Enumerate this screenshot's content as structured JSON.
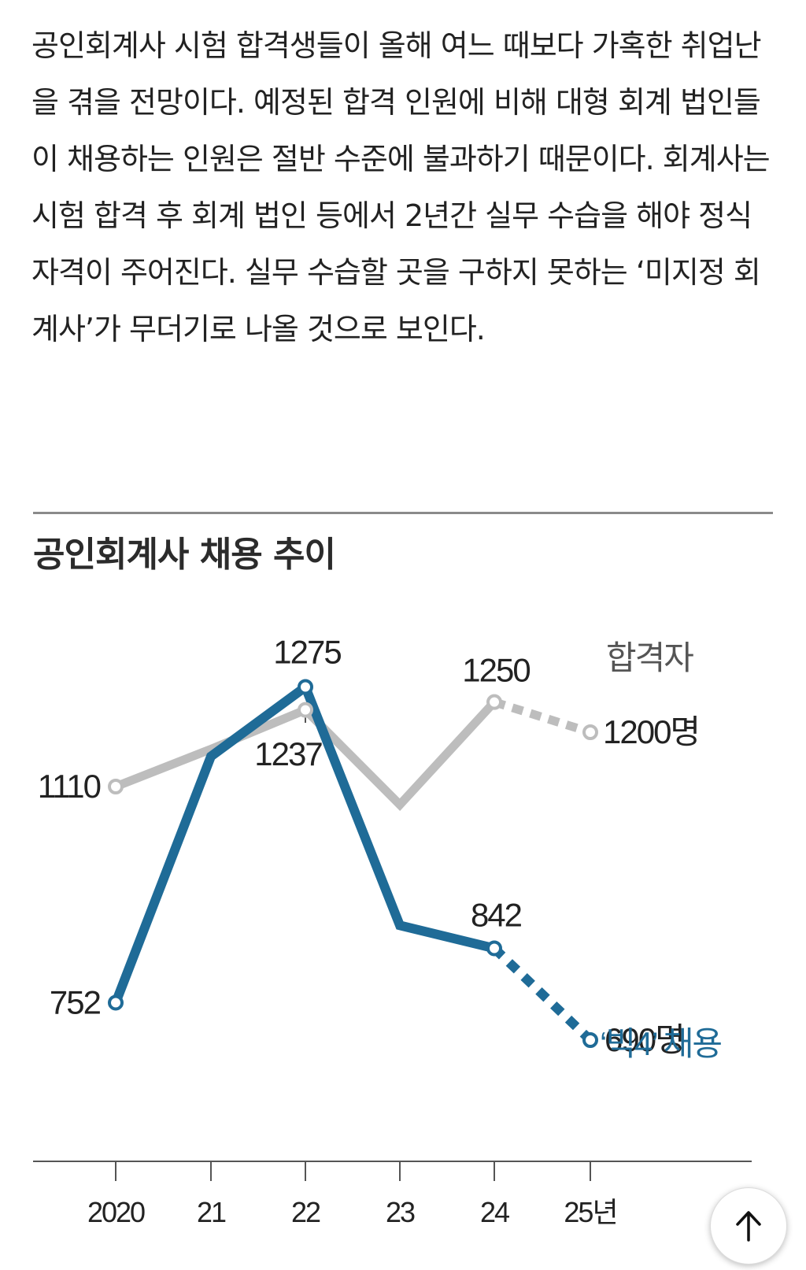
{
  "article": {
    "text": "공인회계사 시험 합격생들이 올해 여느 때보다 가혹한 취업난을 겪을 전망이다. 예정된 합격 인원에 비해 대형 회계 법인들이 채용하는 인원은 절반 수준에 불과하기 때문이다. 회계사는 시험 합격 후 회계 법인 등에서 2년간 실무 수습을 해야 정식 자격이 주어진다. 실무 수습할 곳을 구하지 못하는 ‘미지정 회계사’가 무더기로 나올 것으로 보인다."
  },
  "scroll_top_icon": "arrow-up-icon",
  "chart_data": {
    "type": "line",
    "title": "공인회계사 채용 추이",
    "categories": [
      "2020",
      "21",
      "22",
      "23",
      "24",
      "25년"
    ],
    "ylim": [
      600,
      1350
    ],
    "grid": false,
    "series": [
      {
        "name": "합격자",
        "color": "#bdbdbd",
        "values": [
          1110,
          1172,
          1237,
          1080,
          1250,
          1200
        ],
        "dashed_from_index": 4,
        "labels": [
          "1110",
          "",
          "1237",
          "",
          "1250",
          "1200명"
        ]
      },
      {
        "name": "‘빅4’ 채용",
        "color": "#1f6b97",
        "values": [
          752,
          1160,
          1275,
          880,
          842,
          690
        ],
        "dashed_from_index": 4,
        "labels": [
          "752",
          "",
          "1275",
          "",
          "842",
          "690명"
        ]
      }
    ]
  }
}
